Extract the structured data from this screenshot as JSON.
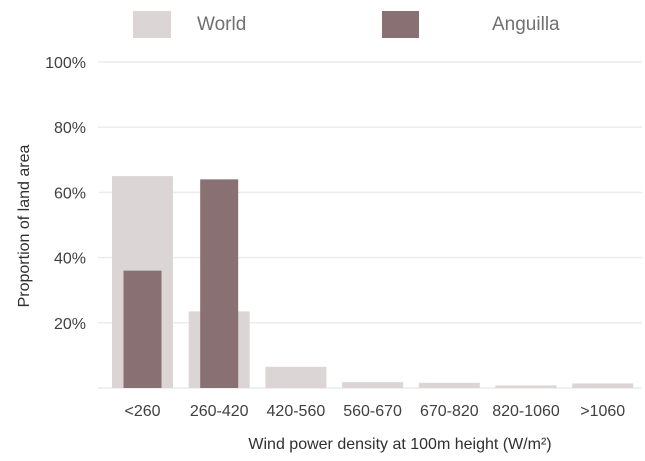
{
  "chart_data": {
    "type": "bar",
    "xlabel": "Wind power density at 100m height (W/m²)",
    "ylabel": "Proportion of land area",
    "ylim": [
      0,
      100
    ],
    "yticks": [
      0,
      20,
      40,
      60,
      80,
      100
    ],
    "ytick_labels": [
      "",
      "20%",
      "40%",
      "60%",
      "80%",
      "100%"
    ],
    "categories": [
      "<260",
      "260-420",
      "420-560",
      "560-670",
      "670-820",
      "820-1060",
      ">1060"
    ],
    "series": [
      {
        "name": "World",
        "color": "#dcd5d6",
        "values": [
          65,
          23.5,
          6.5,
          1.8,
          1.6,
          0.8,
          1.4
        ]
      },
      {
        "name": "Anguilla",
        "color": "#887073",
        "values": [
          36,
          64,
          0,
          0,
          0,
          0,
          0
        ]
      }
    ],
    "legend_position": "top",
    "grid": true
  }
}
